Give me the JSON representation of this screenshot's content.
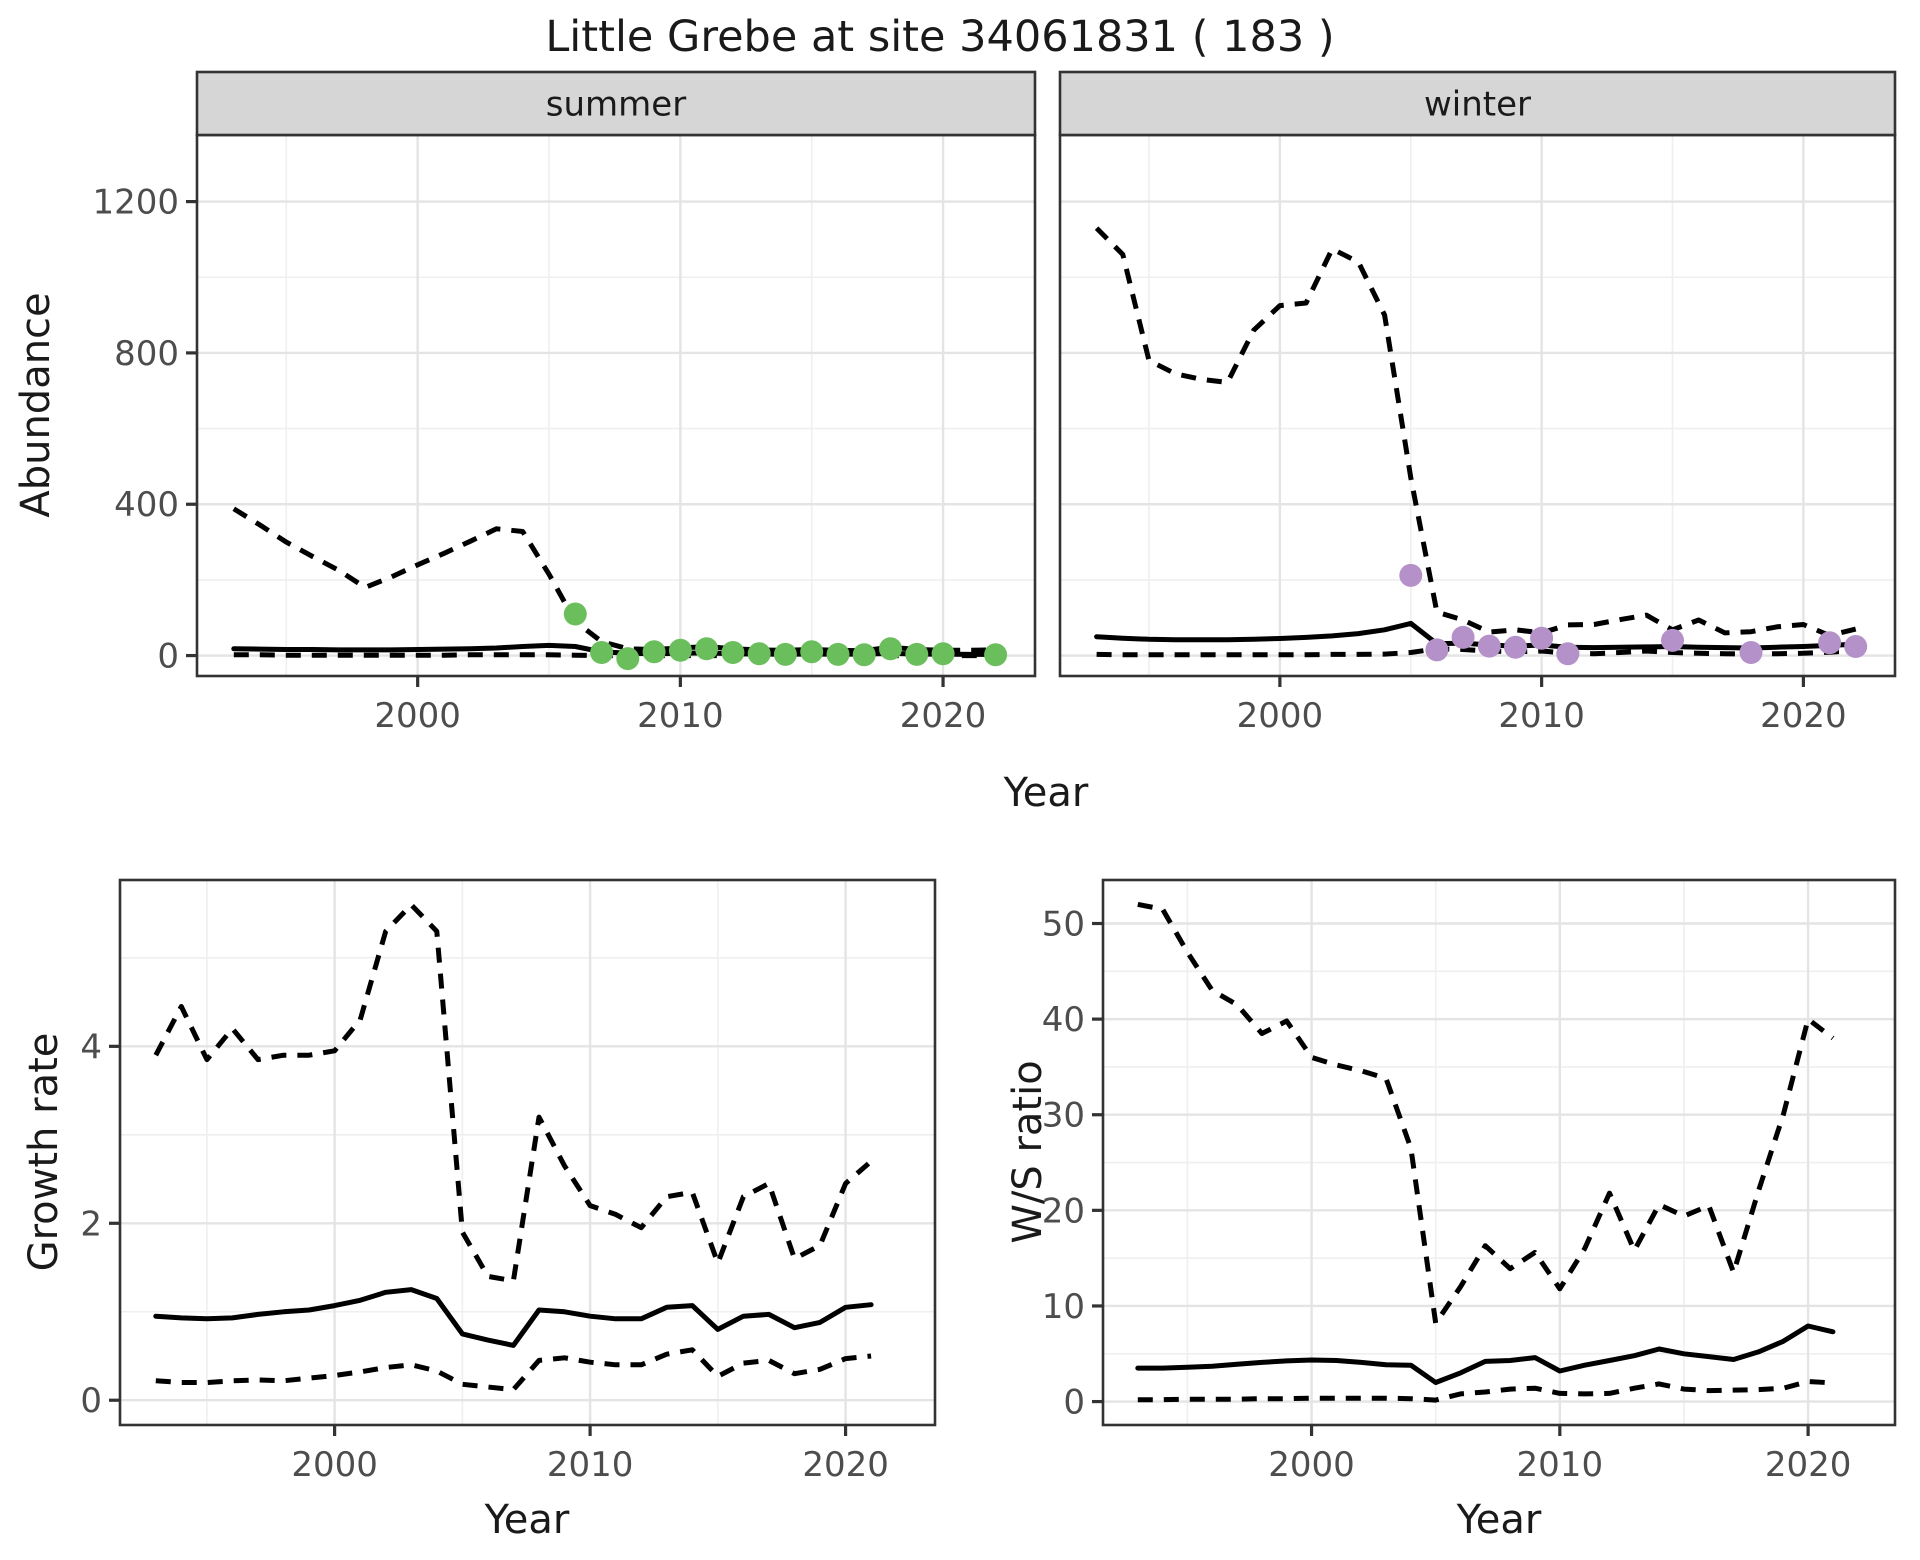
{
  "title": "Little Grebe at site 34061831 ( 183 )",
  "colors": {
    "summer_points": "#6BBE5C",
    "winter_points": "#B491C9",
    "line": "#000000",
    "grid_major": "#e4e4e4",
    "grid_minor": "#efefef",
    "panel_border": "#333333",
    "strip_fill": "#d6d6d6",
    "tick_label": "#4d4d4d",
    "axis_text": "#1a1a1a"
  },
  "chart_data": [
    {
      "type": "line",
      "panel": "abundance-summer",
      "facet_label": "summer",
      "ylabel": "Abundance",
      "xlabel": "Year",
      "xlim": [
        1991.6,
        2023.5
      ],
      "ylim": [
        -54,
        1376
      ],
      "xticks": [
        2000,
        2010,
        2020
      ],
      "xminor": [
        1995,
        2005,
        2015
      ],
      "yticks": [
        0,
        400,
        800,
        1200
      ],
      "yminor": [
        200,
        600,
        1000
      ],
      "x": [
        1993,
        1994,
        1995,
        1996,
        1997,
        1998,
        1999,
        2000,
        2001,
        2002,
        2003,
        2004,
        2005,
        2006,
        2007,
        2008,
        2009,
        2010,
        2011,
        2012,
        2013,
        2014,
        2015,
        2016,
        2017,
        2018,
        2019,
        2020,
        2021,
        2022
      ],
      "series": [
        {
          "name": "upper_ci",
          "style": "dashed",
          "values": [
            388,
            345,
            300,
            262,
            225,
            180,
            208,
            240,
            270,
            302,
            335,
            328,
            215,
            90,
            37,
            18,
            16,
            20,
            24,
            18,
            15,
            14,
            16,
            14,
            13,
            22,
            16,
            14,
            14,
            15
          ]
        },
        {
          "name": "median",
          "style": "solid",
          "values": [
            18,
            17,
            16,
            16,
            15,
            15,
            15,
            16,
            17,
            18,
            20,
            24,
            27,
            24,
            10,
            6,
            5,
            6,
            7,
            5,
            4,
            4,
            4,
            4,
            4,
            6,
            4,
            4,
            3,
            3
          ]
        },
        {
          "name": "lower_ci",
          "style": "dashed",
          "values": [
            2,
            2,
            1,
            1,
            1,
            1,
            1,
            1,
            1,
            2,
            2,
            2,
            2,
            1,
            0,
            0,
            0,
            0,
            0,
            0,
            0,
            0,
            0,
            0,
            0,
            0,
            0,
            0,
            0,
            0
          ]
        }
      ],
      "points": {
        "name": "observed-counts-summer",
        "color": "#6BBE5C",
        "x": [
          2006,
          2007,
          2008,
          2009,
          2010,
          2011,
          2012,
          2013,
          2014,
          2015,
          2016,
          2017,
          2018,
          2019,
          2020,
          2022
        ],
        "y": [
          110,
          8,
          -8,
          10,
          14,
          18,
          8,
          5,
          3,
          10,
          3,
          2,
          18,
          3,
          5,
          2
        ]
      }
    },
    {
      "type": "line",
      "panel": "abundance-winter",
      "facet_label": "winter",
      "ylabel": "",
      "xlabel": "Year",
      "xlim": [
        1991.6,
        2023.5
      ],
      "ylim": [
        -54,
        1376
      ],
      "xticks": [
        2000,
        2010,
        2020
      ],
      "xminor": [
        1995,
        2005,
        2015
      ],
      "yticks": [
        0,
        400,
        800,
        1200
      ],
      "yminor": [
        200,
        600,
        1000
      ],
      "x": [
        1993,
        1994,
        1995,
        1996,
        1997,
        1998,
        1999,
        2000,
        2001,
        2002,
        2003,
        2004,
        2005,
        2006,
        2007,
        2008,
        2009,
        2010,
        2011,
        2012,
        2013,
        2014,
        2015,
        2016,
        2017,
        2018,
        2019,
        2020,
        2021,
        2022
      ],
      "series": [
        {
          "name": "upper_ci",
          "style": "dashed",
          "values": [
            1130,
            1060,
            780,
            745,
            730,
            722,
            860,
            925,
            932,
            1075,
            1040,
            900,
            470,
            115,
            94,
            62,
            68,
            60,
            81,
            82,
            95,
            107,
            68,
            94,
            60,
            63,
            76,
            82,
            53,
            70
          ]
        },
        {
          "name": "median",
          "style": "solid",
          "values": [
            50,
            46,
            43,
            42,
            42,
            42,
            43,
            45,
            48,
            52,
            58,
            68,
            85,
            31,
            33,
            28,
            25,
            28,
            22,
            21,
            22,
            23,
            24,
            22,
            21,
            20,
            22,
            24,
            27,
            30
          ]
        },
        {
          "name": "lower_ci",
          "style": "dashed",
          "values": [
            3,
            2,
            2,
            2,
            2,
            2,
            2,
            2,
            2,
            3,
            3,
            4,
            8,
            18,
            16,
            12,
            10,
            12,
            6,
            5,
            8,
            12,
            8,
            6,
            5,
            4,
            5,
            6,
            9,
            13
          ]
        }
      ],
      "points": {
        "name": "observed-counts-winter",
        "color": "#B491C9",
        "x": [
          2005,
          2006,
          2007,
          2008,
          2009,
          2010,
          2011,
          2015,
          2018,
          2021,
          2022
        ],
        "y": [
          212,
          15,
          48,
          25,
          22,
          46,
          5,
          40,
          8,
          34,
          24
        ]
      }
    },
    {
      "type": "line",
      "panel": "growth-rate",
      "facet_label": "",
      "ylabel": "Growth rate",
      "xlabel": "Year",
      "xlim": [
        1991.6,
        2023.5
      ],
      "ylim": [
        -0.28,
        5.88
      ],
      "xticks": [
        2000,
        2010,
        2020
      ],
      "xminor": [
        1995,
        2005,
        2015
      ],
      "yticks": [
        0,
        2,
        4
      ],
      "yminor": [
        1,
        3,
        5
      ],
      "x": [
        1993,
        1994,
        1995,
        1996,
        1997,
        1998,
        1999,
        2000,
        2001,
        2002,
        2003,
        2004,
        2005,
        2006,
        2007,
        2008,
        2009,
        2010,
        2011,
        2012,
        2013,
        2014,
        2015,
        2016,
        2017,
        2018,
        2019,
        2020,
        2021
      ],
      "series": [
        {
          "name": "upper_ci",
          "style": "dashed",
          "values": [
            3.9,
            4.45,
            3.85,
            4.2,
            3.85,
            3.9,
            3.9,
            3.95,
            4.3,
            5.3,
            5.6,
            5.3,
            1.9,
            1.4,
            1.35,
            3.2,
            2.65,
            2.2,
            2.1,
            1.95,
            2.3,
            2.35,
            1.55,
            2.3,
            2.45,
            1.6,
            1.75,
            2.45,
            2.7
          ]
        },
        {
          "name": "median",
          "style": "solid",
          "values": [
            0.95,
            0.93,
            0.92,
            0.93,
            0.97,
            1.0,
            1.02,
            1.07,
            1.13,
            1.22,
            1.25,
            1.15,
            0.75,
            0.68,
            0.62,
            1.02,
            1.0,
            0.95,
            0.92,
            0.92,
            1.05,
            1.07,
            0.8,
            0.95,
            0.97,
            0.82,
            0.88,
            1.05,
            1.08
          ]
        },
        {
          "name": "lower_ci",
          "style": "dashed",
          "values": [
            0.22,
            0.2,
            0.2,
            0.22,
            0.23,
            0.22,
            0.25,
            0.28,
            0.32,
            0.37,
            0.4,
            0.33,
            0.18,
            0.15,
            0.12,
            0.45,
            0.48,
            0.43,
            0.4,
            0.4,
            0.52,
            0.57,
            0.27,
            0.42,
            0.45,
            0.3,
            0.35,
            0.47,
            0.5
          ]
        }
      ]
    },
    {
      "type": "line",
      "panel": "ws-ratio",
      "facet_label": "",
      "ylabel": "W/S ratio",
      "xlabel": "Year",
      "xlim": [
        1991.6,
        2023.5
      ],
      "ylim": [
        -2.45,
        54.55
      ],
      "xticks": [
        2000,
        2010,
        2020
      ],
      "xminor": [
        1995,
        2005,
        2015
      ],
      "yticks": [
        0,
        10,
        20,
        30,
        40,
        50
      ],
      "yminor": [
        5,
        15,
        25,
        35,
        45
      ],
      "x": [
        1993,
        1994,
        1995,
        1996,
        1997,
        1998,
        1999,
        2000,
        2001,
        2002,
        2003,
        2004,
        2005,
        2006,
        2007,
        2008,
        2009,
        2010,
        2011,
        2012,
        2013,
        2014,
        2015,
        2016,
        2017,
        2018,
        2019,
        2020,
        2021
      ],
      "series": [
        {
          "name": "upper_ci",
          "style": "dashed",
          "values": [
            52,
            51.5,
            47,
            43,
            41.5,
            38.5,
            39.8,
            36,
            35.2,
            34.6,
            33.8,
            26.5,
            8.2,
            12,
            16.3,
            13.9,
            15.6,
            11.8,
            16,
            21.8,
            15.8,
            20.6,
            19.4,
            20.5,
            13.5,
            22,
            30,
            40,
            38
          ]
        },
        {
          "name": "median",
          "style": "solid",
          "values": [
            3.5,
            3.5,
            3.6,
            3.7,
            3.9,
            4.1,
            4.25,
            4.35,
            4.3,
            4.1,
            3.85,
            3.8,
            2.0,
            3.0,
            4.2,
            4.3,
            4.6,
            3.2,
            3.8,
            4.3,
            4.8,
            5.5,
            5.0,
            4.7,
            4.4,
            5.2,
            6.3,
            7.9,
            7.3
          ]
        },
        {
          "name": "lower_ci",
          "style": "dashed",
          "values": [
            0.2,
            0.2,
            0.25,
            0.25,
            0.25,
            0.3,
            0.3,
            0.35,
            0.35,
            0.35,
            0.35,
            0.3,
            0.15,
            0.8,
            1.0,
            1.3,
            1.4,
            0.85,
            0.8,
            0.85,
            1.4,
            1.85,
            1.3,
            1.15,
            1.2,
            1.25,
            1.4,
            2.1,
            1.95
          ]
        }
      ]
    }
  ]
}
